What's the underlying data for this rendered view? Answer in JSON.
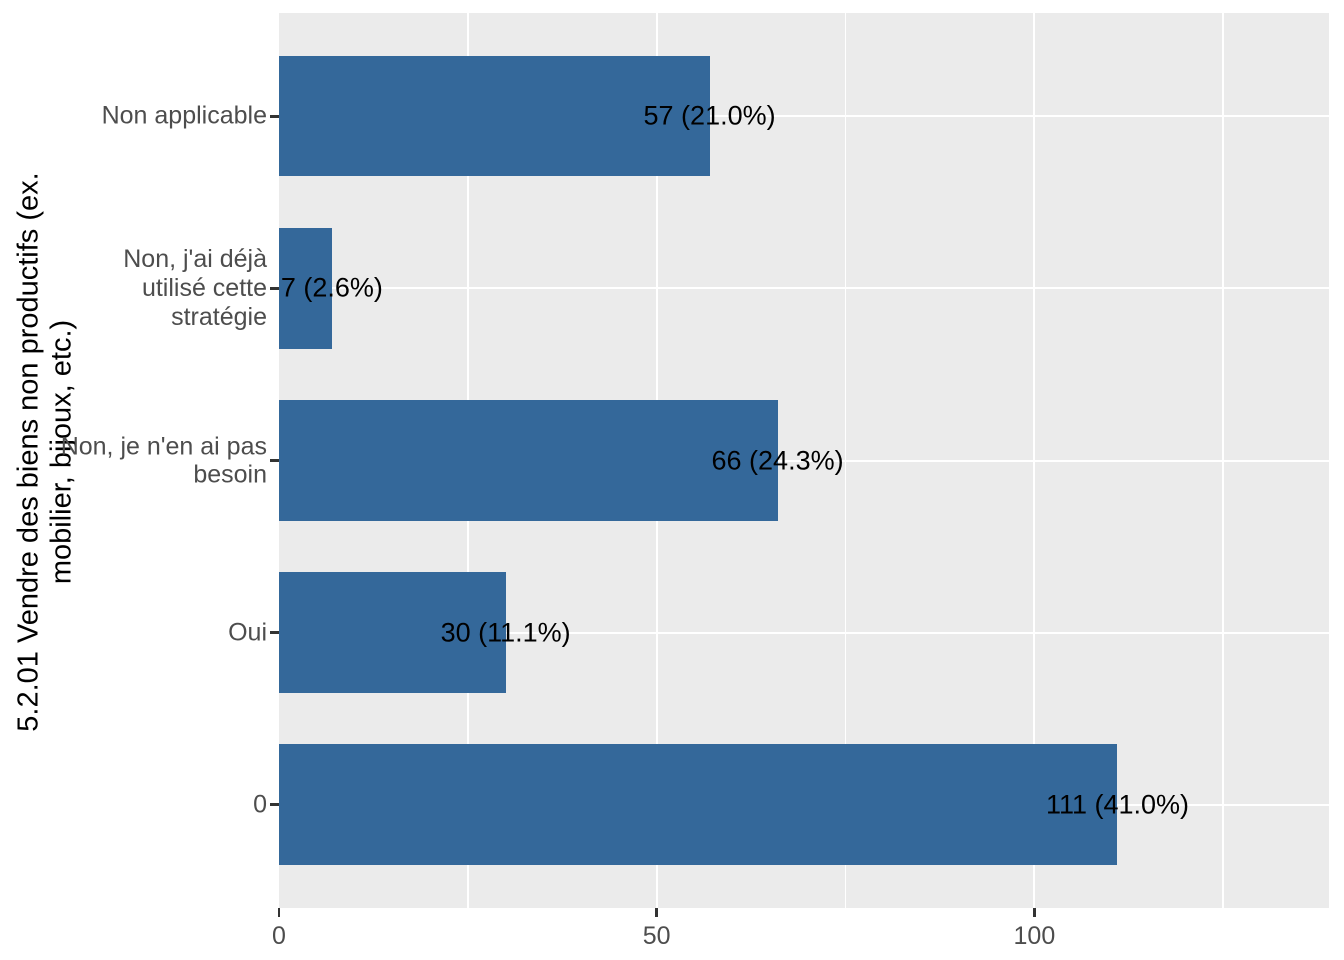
{
  "chart_data": {
    "type": "bar",
    "orientation": "horizontal",
    "title": "",
    "xlabel": "",
    "ylabel": "5.2.01 Vendre des biens non productifs (ex.\nmobilier, bijoux, etc.)",
    "categories_top_to_bottom": [
      "Non applicable",
      "Non, j'ai déjà\nutilisé cette\nstratégie",
      "Non, je n'en ai pas\nbesoin",
      "Oui",
      "0"
    ],
    "values": [
      57,
      7,
      66,
      30,
      111
    ],
    "percents": [
      21.0,
      2.6,
      24.3,
      11.1,
      41.0
    ],
    "bar_labels": [
      "57 (21.0%)",
      "7 (2.6%)",
      "66 (24.3%)",
      "30 (11.1%)",
      "111 (41.0%)"
    ],
    "x_ticks": [
      0,
      50,
      100
    ],
    "x_minor_gridlines": [
      25,
      75,
      125
    ],
    "xlim": [
      0,
      139
    ],
    "grid": "on",
    "legend": "none",
    "colors": {
      "bar": "#34689A",
      "panel_background": "#EBEBEB",
      "figure_background": "#FFFFFF",
      "gridline": "#FFFFFF",
      "axis_text": "#4D4D4D",
      "tick_mark": "#333333",
      "bar_label_text": "#000000",
      "axis_title_text": "#000000"
    }
  }
}
